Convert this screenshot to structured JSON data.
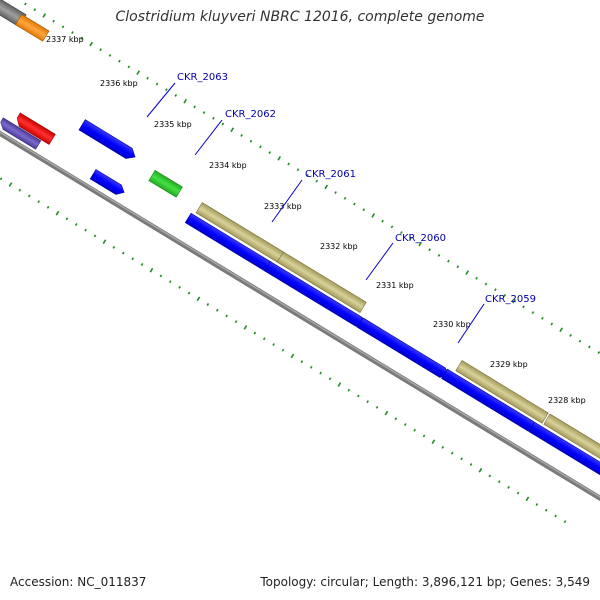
{
  "title": "Clostridium kluyveri NBRC 12016, complete genome",
  "footer": {
    "accession": "Accession: NC_011837",
    "topology": "Topology: circular; Length: 3,896,121 bp; Genes: 3,549"
  },
  "colors": {
    "backbone": "#808080",
    "cds": "#0000ff",
    "gene_olive": "#bdb76b",
    "gene_green": "#32cd32",
    "gene_orange": "#ff8c00",
    "gene_red": "#ff0000",
    "gene_slate": "#6a5acd",
    "gene_gray": "#808080",
    "tick": "#228b22",
    "label": "#0000aa"
  },
  "scale": {
    "unit": "kbp",
    "ticks": [
      "2337 kbp",
      "2336 kbp",
      "2335 kbp",
      "2334 kbp",
      "2333 kbp",
      "2332 kbp",
      "2331 kbp",
      "2330 kbp",
      "2329 kbp",
      "2328 kbp"
    ]
  },
  "gene_labels": [
    "CKR_2063",
    "CKR_2062",
    "CKR_2061",
    "CKR_2060",
    "CKR_2059"
  ]
}
